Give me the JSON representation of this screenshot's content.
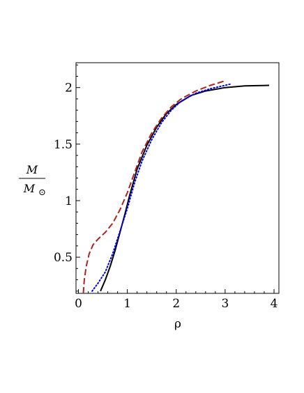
{
  "chart_data": {
    "type": "line",
    "xlabel": "ρ",
    "ylabel": {
      "numerator": "M",
      "denominator": "M",
      "sub_symbol": "⊙"
    },
    "xlim": [
      -0.05,
      4.1
    ],
    "ylim": [
      0.18,
      2.22
    ],
    "x_ticks": [
      0,
      1,
      2,
      3,
      4
    ],
    "y_ticks": [
      0.5,
      1,
      1.5,
      2
    ],
    "x_tick_labels": [
      "0",
      "1",
      "2",
      "3",
      "4"
    ],
    "y_tick_labels": [
      "0.5",
      "1",
      "1.5",
      "2"
    ],
    "grid": false,
    "legend": "none",
    "series": [
      {
        "style": "solid",
        "color": "#000000",
        "points": [
          [
            0.45,
            0.2
          ],
          [
            0.55,
            0.3
          ],
          [
            0.65,
            0.42
          ],
          [
            0.75,
            0.56
          ],
          [
            0.85,
            0.72
          ],
          [
            0.95,
            0.88
          ],
          [
            1.05,
            1.05
          ],
          [
            1.2,
            1.28
          ],
          [
            1.4,
            1.49
          ],
          [
            1.6,
            1.65
          ],
          [
            1.8,
            1.77
          ],
          [
            2.0,
            1.85
          ],
          [
            2.3,
            1.93
          ],
          [
            2.6,
            1.97
          ],
          [
            3.0,
            2.0
          ],
          [
            3.4,
            2.015
          ],
          [
            3.9,
            2.02
          ]
        ]
      },
      {
        "style": "dotted",
        "color": "#0000ff",
        "points": [
          [
            0.28,
            0.2
          ],
          [
            0.4,
            0.27
          ],
          [
            0.55,
            0.37
          ],
          [
            0.7,
            0.53
          ],
          [
            0.85,
            0.73
          ],
          [
            1.0,
            0.93
          ],
          [
            1.15,
            1.16
          ],
          [
            1.3,
            1.35
          ],
          [
            1.5,
            1.54
          ],
          [
            1.7,
            1.69
          ],
          [
            1.9,
            1.8
          ],
          [
            2.1,
            1.88
          ],
          [
            2.4,
            1.95
          ],
          [
            2.7,
            1.99
          ],
          [
            3.1,
            2.03
          ]
        ]
      },
      {
        "style": "dashed",
        "color": "#b22222",
        "points": [
          [
            0.1,
            0.18
          ],
          [
            0.12,
            0.3
          ],
          [
            0.16,
            0.42
          ],
          [
            0.22,
            0.53
          ],
          [
            0.3,
            0.61
          ],
          [
            0.4,
            0.66
          ],
          [
            0.55,
            0.72
          ],
          [
            0.7,
            0.8
          ],
          [
            0.85,
            0.92
          ],
          [
            1.0,
            1.07
          ],
          [
            1.15,
            1.25
          ],
          [
            1.3,
            1.43
          ],
          [
            1.5,
            1.6
          ],
          [
            1.7,
            1.73
          ],
          [
            1.9,
            1.83
          ],
          [
            2.1,
            1.9
          ],
          [
            2.4,
            1.97
          ],
          [
            2.7,
            2.02
          ],
          [
            3.0,
            2.06
          ]
        ]
      }
    ]
  }
}
